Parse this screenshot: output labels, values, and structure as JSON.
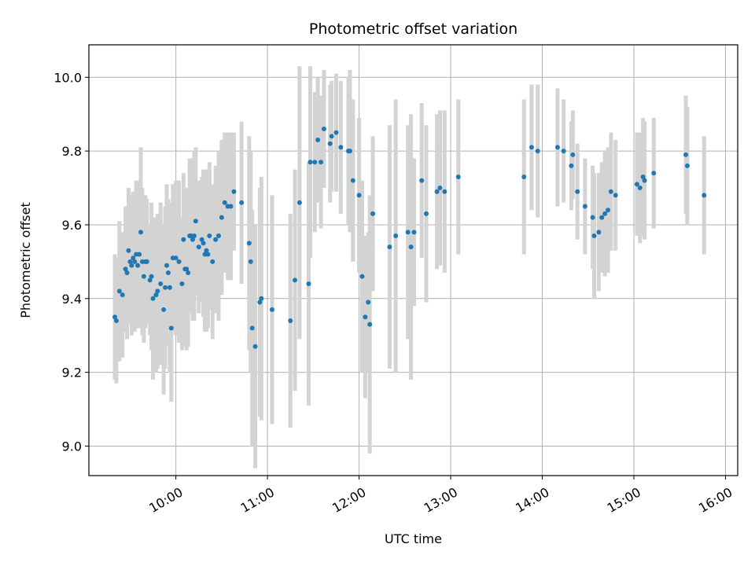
{
  "chart_data": {
    "type": "scatter",
    "title": "Photometric offset variation",
    "xlabel": "UTC time",
    "ylabel": "Photometric offset",
    "xlim": [
      "09:03",
      "16:08"
    ],
    "ylim": [
      8.92,
      10.088
    ],
    "x_ticks": [
      "10:00",
      "11:00",
      "12:00",
      "13:00",
      "14:00",
      "15:00",
      "16:00"
    ],
    "y_ticks": [
      9.0,
      9.2,
      9.4,
      9.6,
      9.8,
      10.0
    ],
    "y_tick_labels": [
      "9.0",
      "9.2",
      "9.4",
      "9.6",
      "9.8",
      "10.0"
    ],
    "grid": true,
    "point_color": "#1f77b4",
    "errorbar_color": "#d3d3d3",
    "series": [
      {
        "x": [
          "09:20",
          "09:21",
          "09:23",
          "09:25",
          "09:27",
          "09:28",
          "09:29",
          "09:30",
          "09:31",
          "09:32",
          "09:33",
          "09:34",
          "09:35",
          "09:36",
          "09:37",
          "09:38",
          "09:39",
          "09:40",
          "09:41",
          "09:43",
          "09:44",
          "09:45",
          "09:47",
          "09:48",
          "09:50",
          "09:52",
          "09:53",
          "09:54",
          "09:55",
          "09:56",
          "09:57",
          "09:58",
          "10:00",
          "10:02",
          "10:04",
          "10:05",
          "10:06",
          "10:07",
          "10:08",
          "10:09",
          "10:10",
          "10:11",
          "10:12",
          "10:13",
          "10:15",
          "10:17",
          "10:18",
          "10:19",
          "10:20",
          "10:21",
          "10:22",
          "10:24",
          "10:26",
          "10:28",
          "10:30",
          "10:32",
          "10:34",
          "10:36",
          "10:38",
          "10:43",
          "10:48",
          "10:49",
          "10:50",
          "10:52",
          "10:55",
          "10:56",
          "11:03",
          "11:15",
          "11:18",
          "11:21",
          "11:27",
          "11:28",
          "11:31",
          "11:33",
          "11:35",
          "11:37",
          "11:41",
          "11:42",
          "11:45",
          "11:48",
          "11:53",
          "11:54",
          "11:56",
          "12:00",
          "12:02",
          "12:04",
          "12:06",
          "12:07",
          "12:09",
          "12:20",
          "12:24",
          "12:32",
          "12:34",
          "12:36",
          "12:41",
          "12:44",
          "12:51",
          "12:53",
          "12:56",
          "13:05",
          "13:48",
          "13:53",
          "13:57",
          "14:10",
          "14:14",
          "14:19",
          "14:20",
          "14:23",
          "14:28",
          "14:33",
          "14:34",
          "14:37",
          "14:39",
          "14:41",
          "14:43",
          "14:45",
          "14:48",
          "15:02",
          "15:04",
          "15:06",
          "15:07",
          "15:13",
          "15:34",
          "15:35",
          "15:46"
        ],
        "y": [
          9.35,
          9.34,
          9.42,
          9.41,
          9.48,
          9.47,
          9.53,
          9.5,
          9.49,
          9.51,
          9.5,
          9.52,
          9.49,
          9.52,
          9.58,
          9.5,
          9.46,
          9.5,
          9.5,
          9.45,
          9.46,
          9.4,
          9.41,
          9.42,
          9.44,
          9.37,
          9.43,
          9.49,
          9.47,
          9.43,
          9.32,
          9.51,
          9.51,
          9.5,
          9.44,
          9.56,
          9.48,
          9.48,
          9.47,
          9.57,
          9.57,
          9.56,
          9.57,
          9.61,
          9.54,
          9.56,
          9.55,
          9.52,
          9.53,
          9.52,
          9.57,
          9.5,
          9.56,
          9.57,
          9.62,
          9.66,
          9.65,
          9.65,
          9.69,
          9.66,
          9.55,
          9.5,
          9.32,
          9.27,
          9.39,
          9.4,
          9.37,
          9.34,
          9.45,
          9.66,
          9.44,
          9.77,
          9.77,
          9.83,
          9.77,
          9.86,
          9.82,
          9.84,
          9.85,
          9.81,
          9.8,
          9.8,
          9.72,
          9.68,
          9.46,
          9.35,
          9.39,
          9.33,
          9.63,
          9.54,
          9.57,
          9.58,
          9.54,
          9.58,
          9.72,
          9.63,
          9.69,
          9.7,
          9.69,
          9.73,
          9.73,
          9.81,
          9.8,
          9.81,
          9.8,
          9.76,
          9.79,
          9.69,
          9.65,
          9.62,
          9.57,
          9.58,
          9.62,
          9.63,
          9.64,
          9.69,
          9.68,
          9.71,
          9.7,
          9.73,
          9.72,
          9.74,
          9.79,
          9.76,
          9.68
        ],
        "err": [
          0.17,
          0.17,
          0.19,
          0.17,
          0.17,
          0.18,
          0.17,
          0.17,
          0.19,
          0.18,
          0.19,
          0.2,
          0.17,
          0.2,
          0.23,
          0.2,
          0.18,
          0.18,
          0.17,
          0.15,
          0.2,
          0.22,
          0.21,
          0.21,
          0.22,
          0.23,
          0.22,
          0.22,
          0.2,
          0.23,
          0.2,
          0.2,
          0.21,
          0.22,
          0.18,
          0.18,
          0.21,
          0.22,
          0.2,
          0.21,
          0.21,
          0.22,
          0.23,
          0.2,
          0.18,
          0.17,
          0.2,
          0.21,
          0.22,
          0.2,
          0.2,
          0.21,
          0.2,
          0.23,
          0.21,
          0.19,
          0.2,
          0.2,
          0.16,
          0.22,
          0.29,
          0.3,
          0.32,
          0.33,
          0.31,
          0.33,
          0.31,
          0.29,
          0.3,
          0.37,
          0.33,
          0.26,
          0.19,
          0.17,
          0.18,
          0.16,
          0.16,
          0.15,
          0.16,
          0.18,
          0.2,
          0.22,
          0.22,
          0.21,
          0.26,
          0.22,
          0.19,
          0.35,
          0.21,
          0.33,
          0.37,
          0.29,
          0.36,
          0.2,
          0.21,
          0.24,
          0.21,
          0.21,
          0.22,
          0.21,
          0.21,
          0.17,
          0.18,
          0.16,
          0.14,
          0.12,
          0.12,
          0.13,
          0.13,
          0.14,
          0.17,
          0.16,
          0.15,
          0.17,
          0.17,
          0.16,
          0.15,
          0.14,
          0.15,
          0.16,
          0.16,
          0.15,
          0.16,
          0.16,
          0.16
        ]
      }
    ]
  }
}
